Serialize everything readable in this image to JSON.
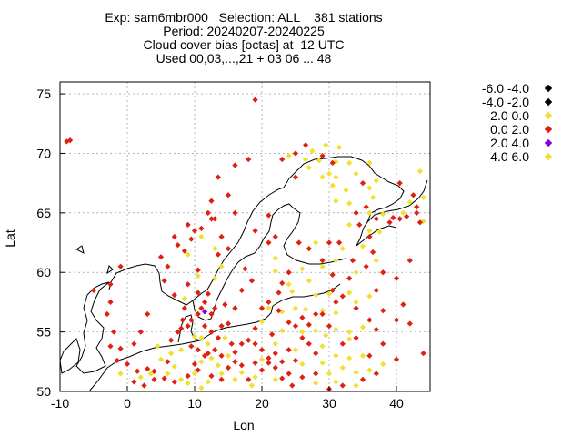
{
  "title_lines": [
    "Exp: sam6mbr000   Selection: ALL    381 stations",
    "Period: 20240207-20240225",
    "Cloud cover bias [octas] at  12 UTC",
    "Used 00,03,...,21 + 03 06 ... 48"
  ],
  "chart_data": {
    "type": "scatter",
    "xlabel": "Lon",
    "ylabel": "Lat",
    "xlim": [
      -10,
      45
    ],
    "ylim": [
      50,
      76
    ],
    "xticks": [
      -10,
      0,
      10,
      20,
      30,
      40
    ],
    "yticks": [
      50,
      55,
      60,
      65,
      70,
      75
    ],
    "xtick_labels": [
      "-10",
      "0",
      "10",
      "20",
      "30",
      "40"
    ],
    "ytick_labels": [
      "50",
      "55",
      "60",
      "65",
      "70",
      "75"
    ],
    "grid": true,
    "legend_position": "right",
    "legend": [
      {
        "label": "-6.0 -4.0",
        "color": "#000000"
      },
      {
        "label": "-4.0 -2.0",
        "color": "#000000"
      },
      {
        "label": "-2.0 0.0",
        "color": "#f0e030"
      },
      {
        "label": "0.0 2.0",
        "color": "#e02010"
      },
      {
        "label": "2.0 4.0",
        "color": "#8000e0"
      },
      {
        "label": "4.0 6.0",
        "color": "#f0e030"
      }
    ],
    "series": [
      {
        "name": "-2.0 0.0",
        "color": "#f0e030",
        "points": [
          [
            24,
            69.8
          ],
          [
            26.5,
            69.5
          ],
          [
            28.5,
            69.4
          ],
          [
            31,
            69.3
          ],
          [
            33,
            69.2
          ],
          [
            36,
            69.2
          ],
          [
            27.5,
            70.2
          ],
          [
            29.5,
            70.7
          ],
          [
            31.5,
            70.5
          ],
          [
            27,
            68.8
          ],
          [
            30,
            68.3
          ],
          [
            34,
            68.3
          ],
          [
            29,
            68.0
          ],
          [
            31,
            68.0
          ],
          [
            37,
            67.7
          ],
          [
            30.5,
            67.3
          ],
          [
            36,
            67.1
          ],
          [
            32.5,
            66.9
          ],
          [
            31,
            66.0
          ],
          [
            36.5,
            66.3
          ],
          [
            33,
            65.8
          ],
          [
            36,
            65.0
          ],
          [
            38,
            64.9
          ],
          [
            41,
            65.0
          ],
          [
            42,
            65.9
          ],
          [
            43.5,
            68.5
          ],
          [
            44,
            66.3
          ],
          [
            44,
            64.3
          ],
          [
            33,
            64.0
          ],
          [
            36,
            63.5
          ],
          [
            37.5,
            63.4
          ],
          [
            28,
            62.5
          ],
          [
            32,
            62.0
          ],
          [
            35,
            62.2
          ],
          [
            37,
            61.0
          ],
          [
            31,
            61.0
          ],
          [
            34,
            60.0
          ],
          [
            26,
            60.3
          ],
          [
            29,
            60.5
          ],
          [
            22,
            61.2
          ],
          [
            22,
            60.1
          ],
          [
            24,
            59.0
          ],
          [
            27,
            59.3
          ],
          [
            24.5,
            58.4
          ],
          [
            28,
            58.1
          ],
          [
            30,
            58.2
          ],
          [
            33,
            58.3
          ],
          [
            36,
            58.0
          ],
          [
            34,
            57.5
          ],
          [
            29,
            56.8
          ],
          [
            31,
            56.6
          ],
          [
            25,
            57.0
          ],
          [
            26.5,
            56.9
          ],
          [
            21,
            57.0
          ],
          [
            23,
            56.7
          ],
          [
            31,
            55.2
          ],
          [
            33,
            55.0
          ],
          [
            35,
            55.4
          ],
          [
            26,
            55.0
          ],
          [
            28,
            55.1
          ],
          [
            29.5,
            54.7
          ],
          [
            33,
            54.4
          ],
          [
            20,
            55.9
          ],
          [
            23,
            55.1
          ],
          [
            22,
            54.0
          ],
          [
            29,
            53.8
          ],
          [
            31,
            53.0
          ],
          [
            33,
            52.8
          ],
          [
            35,
            53.0
          ],
          [
            25,
            53.5
          ],
          [
            26,
            52.3
          ],
          [
            29,
            52.4
          ],
          [
            32,
            52.0
          ],
          [
            34,
            51.6
          ],
          [
            36,
            51.8
          ],
          [
            38,
            52.3
          ],
          [
            30,
            51.5
          ],
          [
            28,
            50.7
          ],
          [
            31,
            50.8
          ],
          [
            34,
            50.5
          ],
          [
            13,
            62.0
          ],
          [
            14,
            60.5
          ],
          [
            13,
            59.5
          ],
          [
            10.5,
            59.7
          ],
          [
            11,
            63.0
          ],
          [
            9,
            61.5
          ],
          [
            8.5,
            57.8
          ],
          [
            10,
            54.6
          ],
          [
            11,
            54.5
          ],
          [
            12,
            54.0
          ],
          [
            14.5,
            54.5
          ],
          [
            15,
            53.0
          ],
          [
            13.5,
            52.2
          ],
          [
            11,
            52.5
          ],
          [
            10,
            51.5
          ],
          [
            8,
            51.0
          ],
          [
            6,
            51.5
          ],
          [
            5,
            52.7
          ],
          [
            7,
            52.1
          ],
          [
            3.5,
            51.5
          ],
          [
            2,
            51.2
          ],
          [
            12,
            50.8
          ],
          [
            14,
            51.5
          ],
          [
            17,
            51.6
          ],
          [
            19,
            51.2
          ],
          [
            22,
            51.0
          ],
          [
            20,
            52.7
          ],
          [
            4.5,
            53.8
          ],
          [
            6.5,
            53.2
          ],
          [
            8,
            53.5
          ],
          [
            -1,
            51.5
          ],
          [
            16,
            51.0
          ],
          [
            9,
            50.7
          ],
          [
            18.5,
            50.5
          ],
          [
            11,
            50.3
          ],
          [
            12.5,
            52.8
          ]
        ]
      },
      {
        "name": "0.0 2.0",
        "color": "#e02010",
        "points": [
          [
            -9,
            71.0
          ],
          [
            -8.5,
            71.1
          ],
          [
            19,
            74.5
          ],
          [
            23,
            69.5
          ],
          [
            25,
            70.0
          ],
          [
            26.5,
            70.7
          ],
          [
            29,
            69.8
          ],
          [
            18,
            69.5
          ],
          [
            16,
            69.0
          ],
          [
            13.5,
            68.0
          ],
          [
            12.5,
            66.0
          ],
          [
            9,
            64.0
          ],
          [
            10,
            63.5
          ],
          [
            11,
            63.7
          ],
          [
            12.5,
            64.5
          ],
          [
            7,
            63.0
          ],
          [
            7.5,
            62.3
          ],
          [
            5,
            61.3
          ],
          [
            6,
            60.5
          ],
          [
            5.5,
            59.3
          ],
          [
            7,
            58.1
          ],
          [
            9,
            59.0
          ],
          [
            10.5,
            60.2
          ],
          [
            8.5,
            61.8
          ],
          [
            9.5,
            62.8
          ],
          [
            13,
            64.5
          ],
          [
            15,
            66.5
          ],
          [
            12,
            65.0
          ],
          [
            14,
            63.0
          ],
          [
            13.5,
            61.5
          ],
          [
            10.5,
            58.3
          ],
          [
            11.5,
            57.5
          ],
          [
            12.5,
            56.5
          ],
          [
            14,
            55.5
          ],
          [
            15,
            55.7
          ],
          [
            16,
            57.0
          ],
          [
            14.5,
            57.3
          ],
          [
            13,
            57.0
          ],
          [
            12,
            58.2
          ],
          [
            8.5,
            57.0
          ],
          [
            8.2,
            56.0
          ],
          [
            9,
            55.5
          ],
          [
            7.5,
            55.0
          ],
          [
            6.5,
            54.3
          ],
          [
            9.5,
            53.8
          ],
          [
            10.5,
            53.5
          ],
          [
            12,
            53.2
          ],
          [
            13,
            53.5
          ],
          [
            14,
            53.0
          ],
          [
            16,
            53.3
          ],
          [
            17,
            54.0
          ],
          [
            18,
            54.3
          ],
          [
            19,
            54.0
          ],
          [
            20,
            53.5
          ],
          [
            21,
            52.8
          ],
          [
            22,
            52.0
          ],
          [
            23,
            52.5
          ],
          [
            24,
            53.5
          ],
          [
            25,
            52.6
          ],
          [
            26,
            54.5
          ],
          [
            27,
            54.0
          ],
          [
            28,
            53.2
          ],
          [
            24,
            51.5
          ],
          [
            20,
            51.8
          ],
          [
            18,
            51.0
          ],
          [
            16,
            52.5
          ],
          [
            14,
            51.0
          ],
          [
            12.5,
            51.3
          ],
          [
            10.5,
            51.8
          ],
          [
            9,
            51.3
          ],
          [
            7,
            50.8
          ],
          [
            5.5,
            51.1
          ],
          [
            4,
            51.0
          ],
          [
            2.5,
            50.5
          ],
          [
            1,
            50.8
          ],
          [
            0,
            52.3
          ],
          [
            -1,
            53.6
          ],
          [
            -1.5,
            52.6
          ],
          [
            -2.5,
            53.8
          ],
          [
            -2,
            55.0
          ],
          [
            -3,
            56.5
          ],
          [
            -2.5,
            57.5
          ],
          [
            -5,
            58.5
          ],
          [
            -1,
            60.5
          ],
          [
            -2.5,
            59.0
          ],
          [
            3,
            56.5
          ],
          [
            2,
            55.0
          ],
          [
            1,
            54.0
          ],
          [
            15,
            62.0
          ],
          [
            16,
            65.0
          ],
          [
            19,
            63.5
          ],
          [
            21,
            62.5
          ],
          [
            22,
            63.0
          ],
          [
            21,
            64.8
          ],
          [
            17.5,
            60.3
          ],
          [
            18.5,
            59.3
          ],
          [
            17,
            58.5
          ],
          [
            22.5,
            58.3
          ],
          [
            24,
            60.0
          ],
          [
            23,
            59.1
          ],
          [
            25.5,
            62.5
          ],
          [
            27,
            62.0
          ],
          [
            29,
            61.0
          ],
          [
            30,
            62.5
          ],
          [
            31.5,
            62.5
          ],
          [
            33.5,
            61.0
          ],
          [
            35.5,
            60.5
          ],
          [
            37,
            58.5
          ],
          [
            33,
            59.5
          ],
          [
            30.5,
            59.8
          ],
          [
            32,
            58.0
          ],
          [
            34,
            57.0
          ],
          [
            36,
            56.0
          ],
          [
            37,
            55.2
          ],
          [
            34,
            54.5
          ],
          [
            32,
            54.0
          ],
          [
            30,
            55.5
          ],
          [
            28,
            56.5
          ],
          [
            26,
            56.2
          ],
          [
            24,
            55.8
          ],
          [
            22.5,
            56.8
          ],
          [
            21,
            57.5
          ],
          [
            20,
            57.0
          ],
          [
            19,
            55.3
          ],
          [
            21.5,
            54.8
          ],
          [
            22,
            53.2
          ],
          [
            25,
            55.5
          ],
          [
            27,
            55.6
          ],
          [
            29,
            56.5
          ],
          [
            31,
            57.5
          ],
          [
            30.5,
            58.5
          ],
          [
            38,
            54.0
          ],
          [
            36,
            53.0
          ],
          [
            40,
            52.7
          ],
          [
            37,
            51.5
          ],
          [
            35,
            51.0
          ],
          [
            32,
            50.5
          ],
          [
            30,
            50.2
          ],
          [
            26,
            51.2
          ],
          [
            28,
            51.5
          ],
          [
            24.5,
            50.5
          ],
          [
            34.5,
            64.0
          ],
          [
            34,
            65.0
          ],
          [
            35.5,
            65.5
          ],
          [
            37,
            64.5
          ],
          [
            39.5,
            64.6
          ],
          [
            40.5,
            64.5
          ],
          [
            41.5,
            64.7
          ],
          [
            43,
            65.5
          ],
          [
            43.5,
            64.2
          ],
          [
            36,
            63.0
          ],
          [
            36.5,
            61.7
          ],
          [
            38,
            60.0
          ],
          [
            40,
            59.5
          ],
          [
            42,
            61.0
          ],
          [
            38,
            56.8
          ],
          [
            40,
            56.0
          ],
          [
            42,
            55.7
          ],
          [
            44,
            53.2
          ],
          [
            41,
            57.3
          ],
          [
            35,
            67.5
          ],
          [
            40.5,
            67.5
          ],
          [
            42.5,
            66.5
          ],
          [
            43,
            65.0
          ],
          [
            39,
            64.2
          ],
          [
            25,
            68.0
          ],
          [
            30.5,
            69.2
          ],
          [
            8,
            55.3
          ],
          [
            11.5,
            55.5
          ],
          [
            12.5,
            55.0
          ],
          [
            13.5,
            54.5
          ],
          [
            15.5,
            54.0
          ],
          [
            9.5,
            56.0
          ],
          [
            10.5,
            56.5
          ],
          [
            11,
            57.0
          ],
          [
            11.5,
            53.0
          ],
          [
            6,
            52.5
          ],
          [
            4,
            51.7
          ],
          [
            10,
            52.3
          ],
          [
            15,
            52.0
          ],
          [
            17,
            52.2
          ],
          [
            19,
            52.4
          ],
          [
            21,
            52.4
          ],
          [
            23,
            51.1
          ],
          [
            3,
            51.9
          ],
          [
            1.5,
            51.7
          ]
        ]
      },
      {
        "name": "2.0 4.0",
        "color": "#8000e0",
        "points": [
          [
            11.5,
            56.7
          ]
        ]
      },
      {
        "name": "-4.0 -2.0",
        "color": "#000000",
        "points": []
      },
      {
        "name": "-6.0 -4.0",
        "color": "#000000",
        "points": []
      }
    ]
  }
}
